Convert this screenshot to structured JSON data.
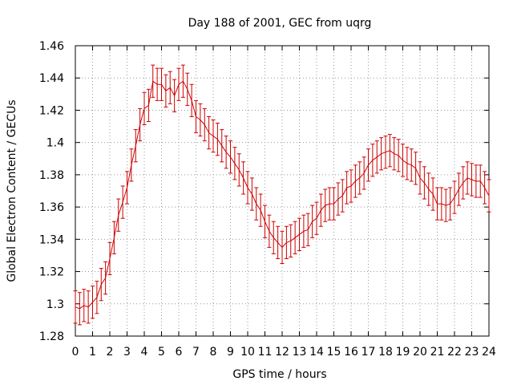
{
  "chart_data": {
    "type": "line",
    "title": "Day 188 of 2001, GEC from uqrg",
    "xlabel": "GPS time / hours",
    "ylabel": "Global Electron Content / GECUs",
    "xlim": [
      0,
      24
    ],
    "ylim": [
      1.28,
      1.46
    ],
    "x_ticks": [
      "0",
      "1",
      "2",
      "3",
      "4",
      "5",
      "6",
      "7",
      "8",
      "9",
      "10",
      "11",
      "12",
      "13",
      "14",
      "15",
      "16",
      "17",
      "18",
      "19",
      "20",
      "21",
      "22",
      "23",
      "24"
    ],
    "y_ticks": [
      "1.28",
      "1.3",
      "1.32",
      "1.34",
      "1.36",
      "1.38",
      "1.4",
      "1.42",
      "1.44",
      "1.46"
    ],
    "grid": true,
    "error_bar": 0.01,
    "series_color": "#cc0000",
    "x": [
      0,
      0.25,
      0.5,
      0.75,
      1,
      1.25,
      1.5,
      1.75,
      2,
      2.25,
      2.5,
      2.75,
      3,
      3.25,
      3.5,
      3.75,
      4,
      4.25,
      4.5,
      4.75,
      5,
      5.25,
      5.5,
      5.75,
      6,
      6.25,
      6.5,
      6.75,
      7,
      7.25,
      7.5,
      7.75,
      8,
      8.25,
      8.5,
      8.75,
      9,
      9.25,
      9.5,
      9.75,
      10,
      10.25,
      10.5,
      10.75,
      11,
      11.25,
      11.5,
      11.75,
      12,
      12.25,
      12.5,
      12.75,
      13,
      13.25,
      13.5,
      13.75,
      14,
      14.25,
      14.5,
      14.75,
      15,
      15.25,
      15.5,
      15.75,
      16,
      16.25,
      16.5,
      16.75,
      17,
      17.25,
      17.5,
      17.75,
      18,
      18.25,
      18.5,
      18.75,
      19,
      19.25,
      19.5,
      19.75,
      20,
      20.25,
      20.5,
      20.75,
      21,
      21.25,
      21.5,
      21.75,
      22,
      22.25,
      22.5,
      22.75,
      23,
      23.25,
      23.5,
      23.75,
      24
    ],
    "values": [
      1.298,
      1.297,
      1.299,
      1.298,
      1.301,
      1.304,
      1.312,
      1.316,
      1.328,
      1.341,
      1.355,
      1.363,
      1.372,
      1.386,
      1.398,
      1.411,
      1.421,
      1.423,
      1.438,
      1.436,
      1.436,
      1.432,
      1.434,
      1.429,
      1.436,
      1.438,
      1.433,
      1.426,
      1.416,
      1.414,
      1.411,
      1.406,
      1.404,
      1.402,
      1.398,
      1.394,
      1.391,
      1.387,
      1.383,
      1.378,
      1.372,
      1.368,
      1.362,
      1.358,
      1.351,
      1.345,
      1.341,
      1.338,
      1.335,
      1.338,
      1.339,
      1.341,
      1.343,
      1.345,
      1.346,
      1.351,
      1.353,
      1.358,
      1.361,
      1.362,
      1.362,
      1.365,
      1.367,
      1.372,
      1.373,
      1.376,
      1.378,
      1.381,
      1.386,
      1.389,
      1.391,
      1.393,
      1.394,
      1.395,
      1.393,
      1.392,
      1.389,
      1.387,
      1.386,
      1.384,
      1.378,
      1.375,
      1.371,
      1.368,
      1.362,
      1.362,
      1.361,
      1.362,
      1.366,
      1.371,
      1.375,
      1.378,
      1.377,
      1.376,
      1.376,
      1.372,
      1.367
    ]
  }
}
